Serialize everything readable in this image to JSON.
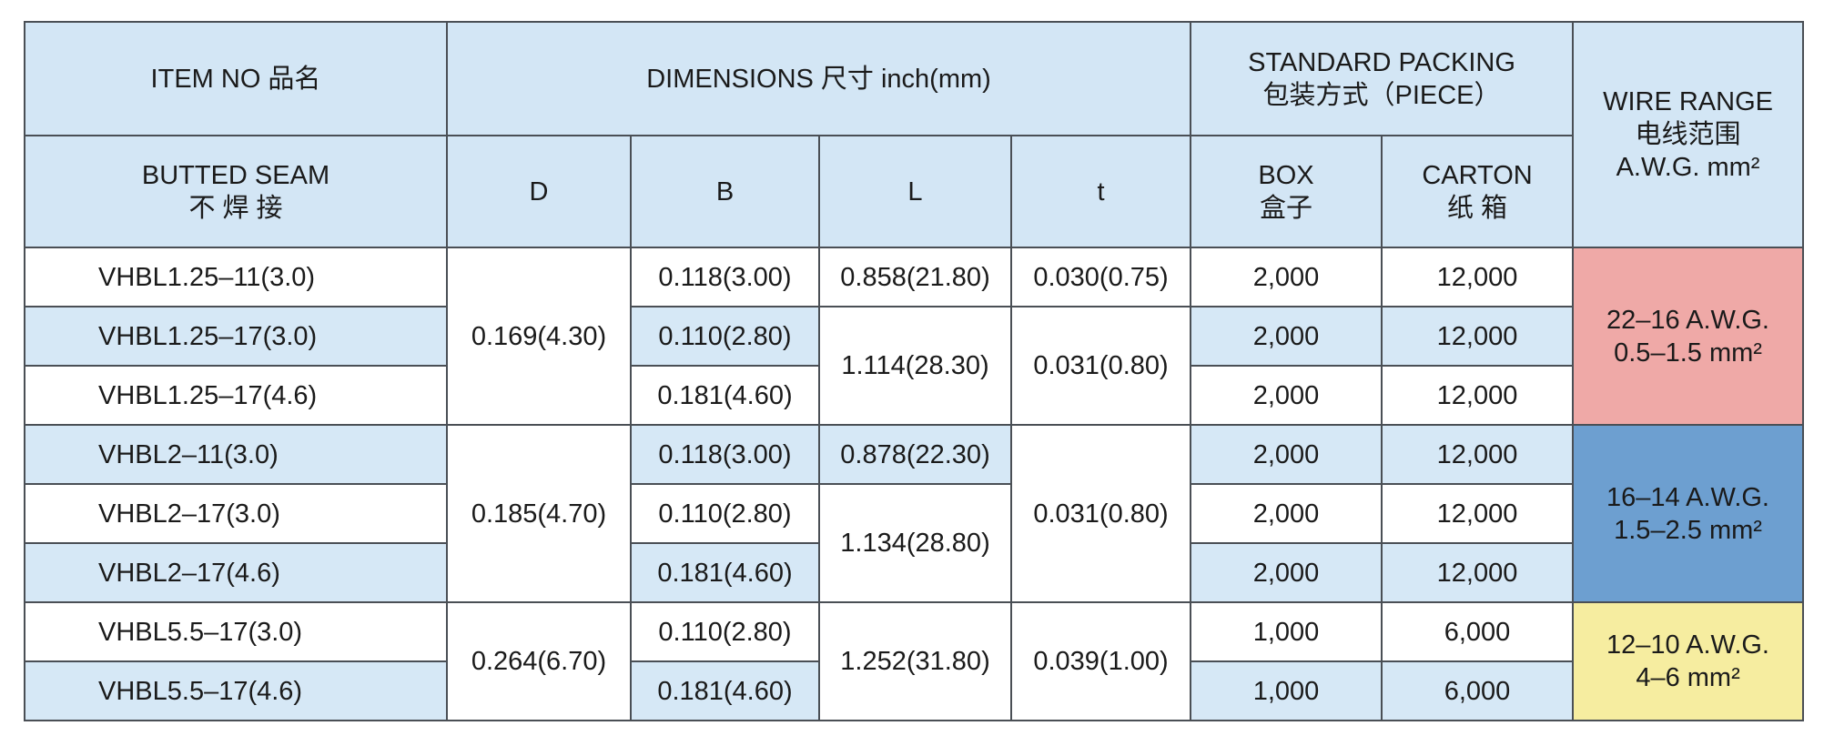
{
  "header": {
    "item_no": "ITEM NO 品名",
    "dimensions": "DIMENSIONS 尺寸  inch(mm)",
    "packing": [
      "STANDARD PACKING",
      "包装方式（PIECE）"
    ],
    "wire_range": [
      "WIRE RANGE",
      "电线范围",
      "A.W.G.  mm²"
    ],
    "butted_seam": [
      "BUTTED  SEAM",
      "不 焊 接"
    ],
    "d": "D",
    "b": "B",
    "l": "L",
    "t": "t",
    "box": [
      "BOX",
      "盒子"
    ],
    "carton": [
      "CARTON",
      "纸 箱"
    ]
  },
  "rows": [
    {
      "item": "VHBL1.25–11(3.0)",
      "b": "0.118(3.00)",
      "box": "2,000",
      "carton": "12,000"
    },
    {
      "item": "VHBL1.25–17(3.0)",
      "b": "0.110(2.80)",
      "box": "2,000",
      "carton": "12,000"
    },
    {
      "item": "VHBL1.25–17(4.6)",
      "b": "0.181(4.60)",
      "box": "2,000",
      "carton": "12,000"
    },
    {
      "item": "VHBL2–11(3.0)",
      "b": "0.118(3.00)",
      "box": "2,000",
      "carton": "12,000"
    },
    {
      "item": "VHBL2–17(3.0)",
      "b": "0.110(2.80)",
      "box": "2,000",
      "carton": "12,000"
    },
    {
      "item": "VHBL2–17(4.6)",
      "b": "0.181(4.60)",
      "box": "2,000",
      "carton": "12,000"
    },
    {
      "item": "VHBL5.5–17(3.0)",
      "b": "0.110(2.80)",
      "box": "1,000",
      "carton": "6,000"
    },
    {
      "item": "VHBL5.5–17(4.6)",
      "b": "0.181(4.60)",
      "box": "1,000",
      "carton": "6,000"
    }
  ],
  "d_groups": [
    "0.169(4.30)",
    "0.185(4.70)",
    "0.264(6.70)"
  ],
  "l_groups": [
    "0.858(21.80)",
    "1.114(28.30)",
    "0.878(22.30)",
    "1.134(28.80)",
    "1.252(31.80)"
  ],
  "t_groups": [
    "0.030(0.75)",
    "0.031(0.80)",
    "0.031(0.80)",
    "0.039(1.00)"
  ],
  "wire_groups": [
    [
      "22–16 A.W.G.",
      "0.5–1.5  mm²"
    ],
    [
      "16–14 A.W.G.",
      "1.5–2.5  mm²"
    ],
    [
      "12–10  A.W.G.",
      "4–6  mm²"
    ]
  ]
}
